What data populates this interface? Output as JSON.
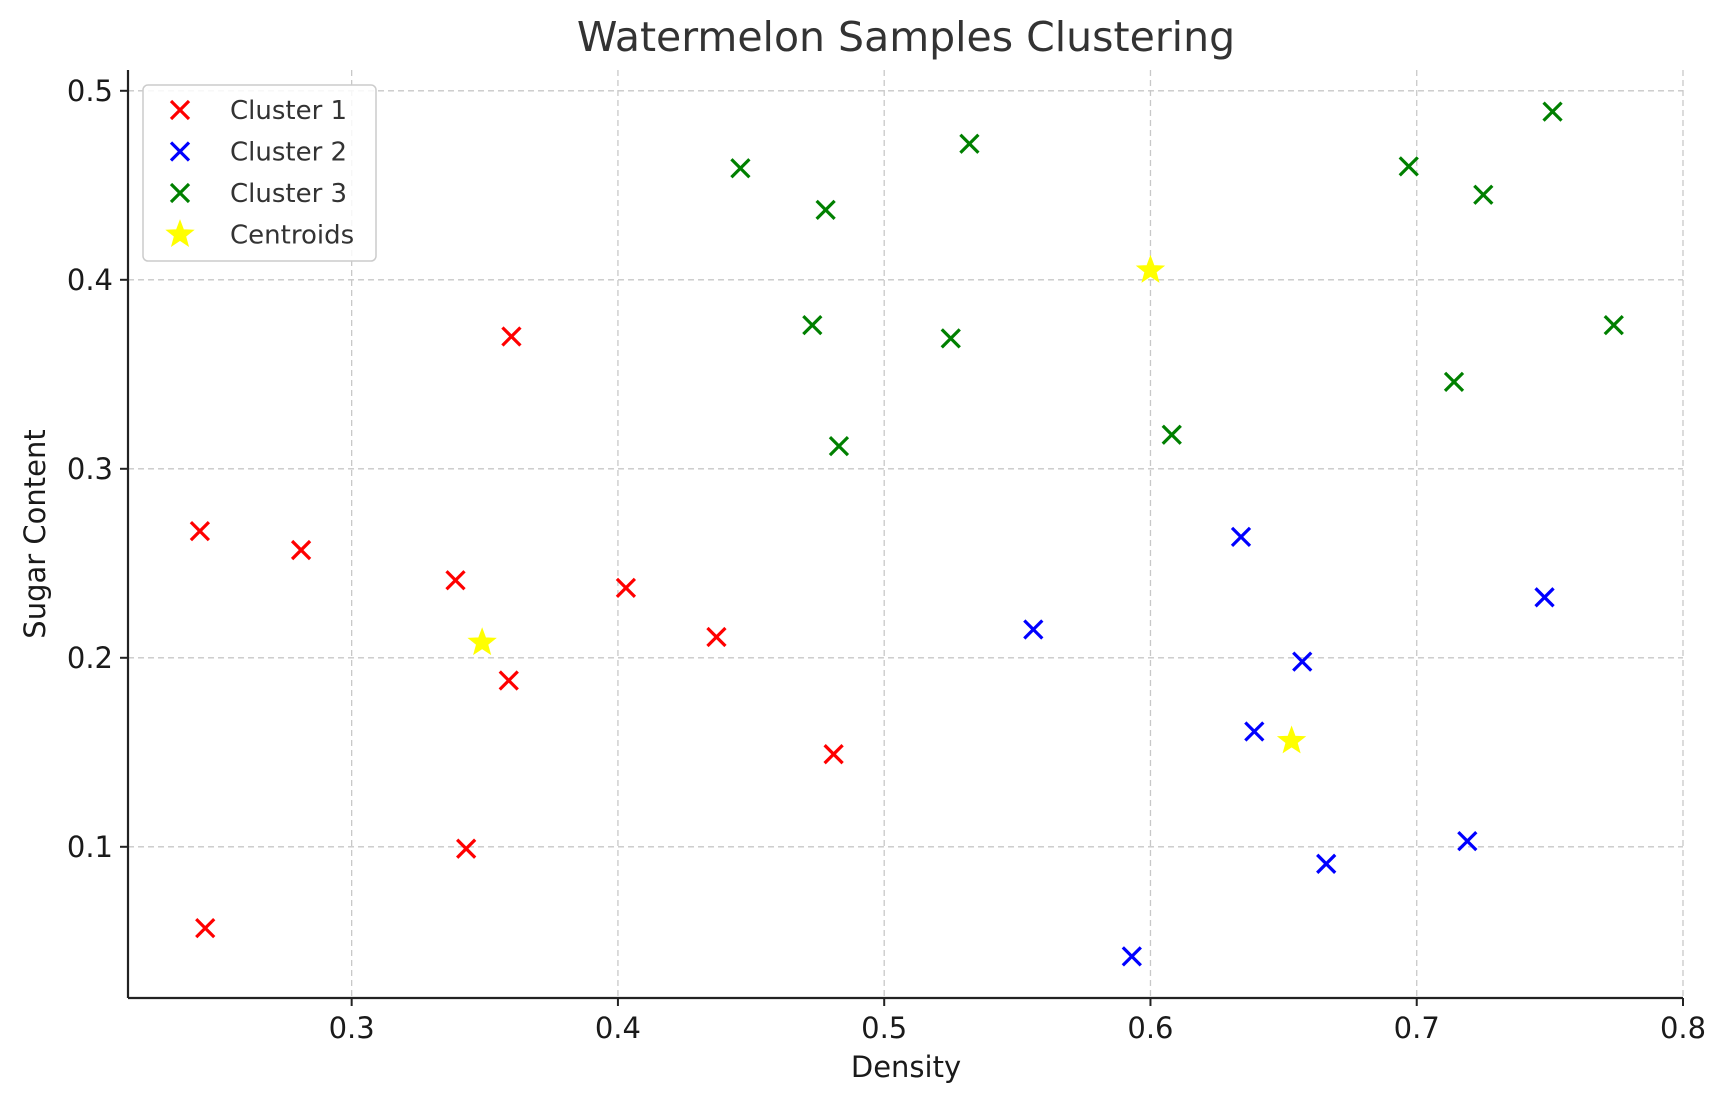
{
  "chart_data": {
    "type": "scatter",
    "title": "Watermelon Samples Clustering",
    "xlabel": "Density",
    "ylabel": "Sugar Content",
    "xlim": [
      0.216,
      0.8
    ],
    "ylim": [
      0.02,
      0.511
    ],
    "x_ticks": [
      0.3,
      0.4,
      0.5,
      0.6,
      0.7,
      0.8
    ],
    "y_ticks": [
      0.1,
      0.2,
      0.3,
      0.4,
      0.5
    ],
    "x_tick_labels": [
      "0.3",
      "0.4",
      "0.5",
      "0.6",
      "0.7",
      "0.8"
    ],
    "y_tick_labels": [
      "0.1",
      "0.2",
      "0.3",
      "0.4",
      "0.5"
    ],
    "grid": true,
    "legend_position": "top-left",
    "series": [
      {
        "name": "Cluster 1",
        "marker": "x",
        "color": "#ff0000",
        "x": [
          0.243,
          0.245,
          0.281,
          0.339,
          0.343,
          0.359,
          0.36,
          0.403,
          0.437,
          0.481
        ],
        "y": [
          0.267,
          0.057,
          0.257,
          0.241,
          0.099,
          0.188,
          0.37,
          0.237,
          0.211,
          0.149
        ]
      },
      {
        "name": "Cluster 2",
        "marker": "x",
        "color": "#0000ff",
        "x": [
          0.556,
          0.593,
          0.634,
          0.639,
          0.657,
          0.666,
          0.719,
          0.748
        ],
        "y": [
          0.215,
          0.042,
          0.264,
          0.161,
          0.198,
          0.091,
          0.103,
          0.232
        ]
      },
      {
        "name": "Cluster 3",
        "marker": "x",
        "color": "#008000",
        "x": [
          0.446,
          0.473,
          0.478,
          0.483,
          0.525,
          0.532,
          0.608,
          0.697,
          0.714,
          0.725,
          0.751,
          0.774
        ],
        "y": [
          0.459,
          0.376,
          0.437,
          0.312,
          0.369,
          0.472,
          0.318,
          0.46,
          0.346,
          0.445,
          0.489,
          0.376
        ]
      },
      {
        "name": "Centroids",
        "marker": "star",
        "color": "#ffff00",
        "x": [
          0.349,
          0.6,
          0.653
        ],
        "y": [
          0.208,
          0.405,
          0.156
        ]
      }
    ]
  }
}
